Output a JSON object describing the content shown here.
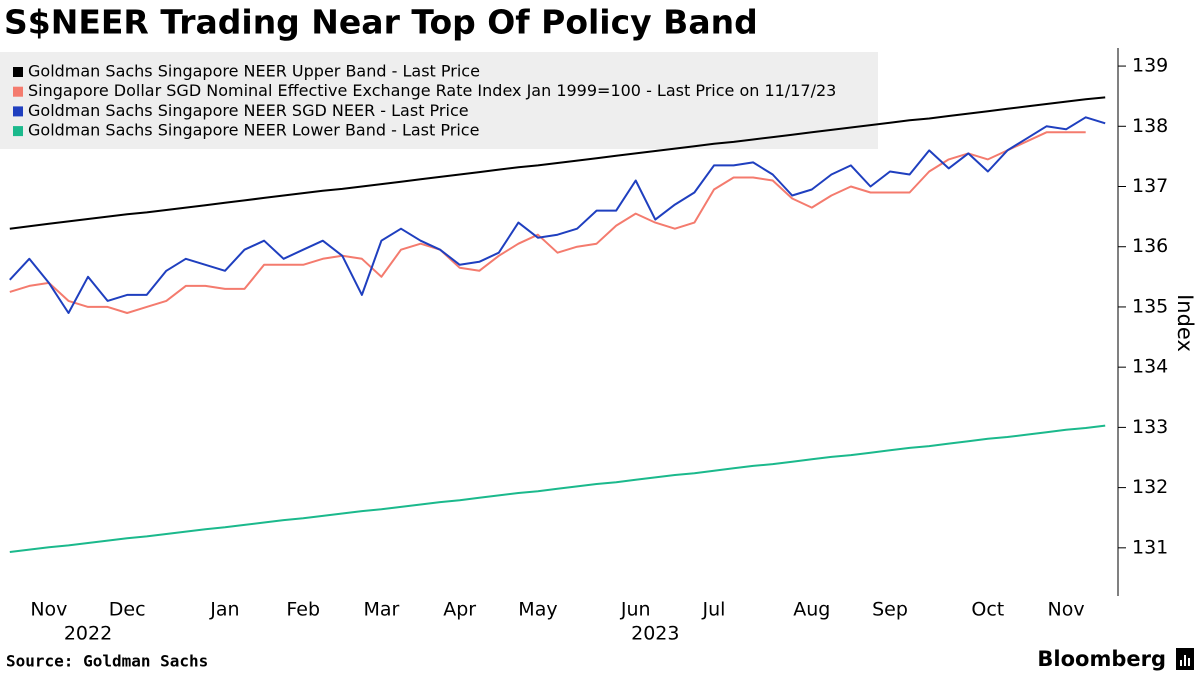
{
  "chart_data": {
    "type": "line",
    "title": "S$NEER Trading Near Top Of Policy Band",
    "y_axis_label": "Index",
    "source": "Source: Goldman Sachs",
    "brand": "Bloomberg",
    "legend": "top-left",
    "grid": false,
    "categories": [
      null,
      null,
      "Nov",
      null,
      null,
      null,
      "Dec",
      null,
      null,
      null,
      null,
      "Jan",
      null,
      null,
      null,
      "Feb",
      null,
      null,
      null,
      "Mar",
      null,
      null,
      null,
      "Apr",
      null,
      null,
      null,
      "May",
      null,
      null,
      null,
      null,
      "Jun",
      null,
      null,
      null,
      "Jul",
      null,
      null,
      null,
      null,
      "Aug",
      null,
      null,
      null,
      "Sep",
      null,
      null,
      null,
      null,
      "Oct",
      null,
      null,
      null,
      "Nov",
      null,
      null
    ],
    "category_years": [
      null,
      null,
      null,
      null,
      "2022",
      null,
      null,
      null,
      null,
      null,
      null,
      null,
      null,
      null,
      null,
      null,
      null,
      null,
      null,
      null,
      null,
      null,
      null,
      null,
      null,
      null,
      null,
      null,
      null,
      null,
      null,
      null,
      null,
      "2023",
      null,
      null,
      null,
      null,
      null,
      null,
      null,
      null,
      null,
      null,
      null,
      null,
      null,
      null,
      null,
      null,
      null,
      null,
      null,
      null,
      null,
      null,
      null
    ],
    "ylim": [
      130.2,
      139.3
    ],
    "yticks": [
      131,
      132,
      133,
      134,
      135,
      136,
      137,
      138,
      139
    ],
    "series": [
      {
        "name": "Goldman Sachs Singapore NEER Upper Band - Last Price",
        "color": "#000000",
        "values": [
          136.3,
          136.34,
          136.38,
          136.42,
          136.46,
          136.5,
          136.54,
          136.57,
          136.61,
          136.65,
          136.69,
          136.73,
          136.77,
          136.81,
          136.85,
          136.89,
          136.93,
          136.96,
          137.0,
          137.04,
          137.08,
          137.12,
          137.16,
          137.2,
          137.24,
          137.28,
          137.32,
          137.35,
          137.39,
          137.43,
          137.47,
          137.51,
          137.55,
          137.59,
          137.63,
          137.67,
          137.71,
          137.74,
          137.78,
          137.82,
          137.86,
          137.9,
          137.94,
          137.98,
          138.02,
          138.06,
          138.1,
          138.13,
          138.17,
          138.21,
          138.25,
          138.29,
          138.33,
          138.37,
          138.41,
          138.45,
          138.48
        ]
      },
      {
        "name": "Singapore Dollar SGD Nominal Effective Exchange Rate Index Jan 1999=100 - Last Price on 11/17/23",
        "color": "#f47b6e",
        "values": [
          135.25,
          135.35,
          135.4,
          135.1,
          135.0,
          135.0,
          134.9,
          135.0,
          135.1,
          135.35,
          135.35,
          135.3,
          135.3,
          135.7,
          135.7,
          135.7,
          135.8,
          135.85,
          135.8,
          135.5,
          135.95,
          136.05,
          135.95,
          135.65,
          135.6,
          135.85,
          136.05,
          136.2,
          135.9,
          136.0,
          136.05,
          136.35,
          136.55,
          136.4,
          136.3,
          136.4,
          136.95,
          137.15,
          137.15,
          137.1,
          136.8,
          136.65,
          136.85,
          137.0,
          136.9,
          136.9,
          136.9,
          137.25,
          137.45,
          137.55,
          137.45,
          137.6,
          137.75,
          137.9,
          137.9,
          137.9,
          null
        ]
      },
      {
        "name": "Goldman Sachs Singapore NEER SGD NEER - Last Price",
        "color": "#1f3fbf",
        "values": [
          135.45,
          135.8,
          135.4,
          134.9,
          135.5,
          135.1,
          135.2,
          135.2,
          135.6,
          135.8,
          135.7,
          135.6,
          135.95,
          136.1,
          135.8,
          135.95,
          136.1,
          135.85,
          135.2,
          136.1,
          136.3,
          136.1,
          135.95,
          135.7,
          135.75,
          135.9,
          136.4,
          136.15,
          136.2,
          136.3,
          136.6,
          136.6,
          137.1,
          136.45,
          136.7,
          136.9,
          137.35,
          137.35,
          137.4,
          137.2,
          136.85,
          136.95,
          137.2,
          137.35,
          137.0,
          137.25,
          137.2,
          137.6,
          137.3,
          137.55,
          137.25,
          137.6,
          137.8,
          138.0,
          137.95,
          138.15,
          138.05
        ]
      },
      {
        "name": "Goldman Sachs Singapore NEER Lower Band - Last Price",
        "color": "#1bb98c",
        "values": [
          130.93,
          130.97,
          131.01,
          131.04,
          131.08,
          131.12,
          131.16,
          131.19,
          131.23,
          131.27,
          131.31,
          131.34,
          131.38,
          131.42,
          131.46,
          131.49,
          131.53,
          131.57,
          131.61,
          131.64,
          131.68,
          131.72,
          131.76,
          131.79,
          131.83,
          131.87,
          131.91,
          131.94,
          131.98,
          132.02,
          132.06,
          132.09,
          132.13,
          132.17,
          132.21,
          132.24,
          132.28,
          132.32,
          132.36,
          132.39,
          132.43,
          132.47,
          132.51,
          132.54,
          132.58,
          132.62,
          132.66,
          132.69,
          132.73,
          132.77,
          132.81,
          132.84,
          132.88,
          132.92,
          132.96,
          132.99,
          133.03
        ]
      }
    ]
  }
}
